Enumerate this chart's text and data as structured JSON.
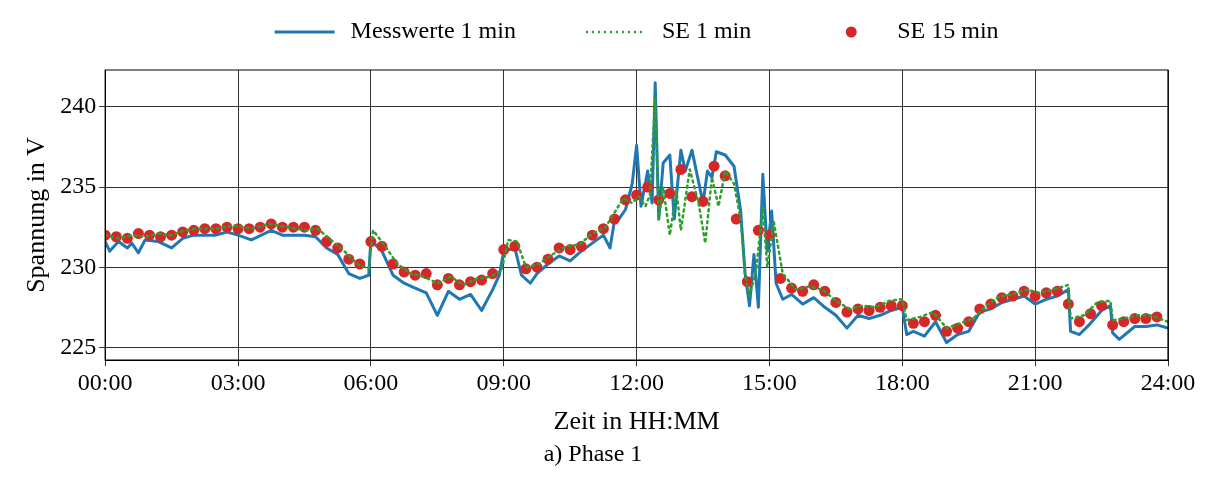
{
  "chart_data": {
    "type": "line",
    "title": "a) Phase 1",
    "xlabel": "Zeit in HH:MM",
    "ylabel": "Spannung in V",
    "xlim": [
      0,
      24
    ],
    "ylim": [
      224.2,
      242.3
    ],
    "xticks": [
      {
        "value": 0,
        "label": "00:00"
      },
      {
        "value": 3,
        "label": "03:00"
      },
      {
        "value": 6,
        "label": "06:00"
      },
      {
        "value": 9,
        "label": "09:00"
      },
      {
        "value": 12,
        "label": "12:00"
      },
      {
        "value": 15,
        "label": "15:00"
      },
      {
        "value": 18,
        "label": "18:00"
      },
      {
        "value": 21,
        "label": "21:00"
      },
      {
        "value": 24,
        "label": "24:00"
      }
    ],
    "yticks": [
      225,
      230,
      235,
      240
    ],
    "grid": true,
    "legend": "top",
    "series": [
      {
        "name": "Messwerte 1 min",
        "type": "line",
        "line_style": "solid",
        "marker": "none",
        "color": "#1f77b4",
        "x": [
          0,
          0.1,
          0.3,
          0.5,
          0.6,
          0.75,
          0.9,
          1.2,
          1.5,
          1.75,
          2.0,
          2.5,
          2.75,
          3.0,
          3.3,
          3.75,
          4.0,
          4.5,
          4.75,
          5.0,
          5.25,
          5.5,
          5.75,
          5.95,
          6.0,
          6.25,
          6.5,
          6.75,
          7.0,
          7.25,
          7.5,
          7.75,
          8.0,
          8.25,
          8.5,
          8.75,
          8.9,
          9.0,
          9.25,
          9.4,
          9.6,
          9.75,
          10.0,
          10.25,
          10.5,
          10.75,
          11.0,
          11.25,
          11.4,
          11.5,
          11.6,
          11.75,
          11.9,
          12.0,
          12.1,
          12.25,
          12.35,
          12.42,
          12.5,
          12.6,
          12.75,
          12.85,
          13.0,
          13.1,
          13.25,
          13.5,
          13.6,
          13.7,
          13.8,
          14.0,
          14.2,
          14.35,
          14.45,
          14.55,
          14.65,
          14.75,
          14.85,
          14.95,
          15.05,
          15.15,
          15.3,
          15.5,
          15.75,
          16.0,
          16.25,
          16.5,
          16.75,
          17.0,
          17.25,
          17.5,
          17.75,
          18.0,
          18.1,
          18.25,
          18.5,
          18.75,
          19.0,
          19.25,
          19.5,
          19.75,
          20.0,
          20.25,
          20.5,
          20.75,
          21.0,
          21.25,
          21.5,
          21.75,
          21.8,
          22.0,
          22.25,
          22.5,
          22.7,
          22.75,
          22.9,
          23.25,
          23.5,
          23.75,
          24.0
        ],
        "values": [
          231.6,
          231.0,
          231.6,
          231.2,
          231.5,
          230.9,
          231.7,
          231.6,
          231.2,
          231.8,
          232.0,
          232.0,
          232.2,
          232.0,
          231.7,
          232.3,
          232.0,
          232.0,
          231.9,
          231.2,
          230.8,
          229.6,
          229.3,
          229.5,
          231.7,
          231.0,
          229.5,
          229.0,
          228.7,
          228.4,
          227.0,
          228.5,
          228.0,
          228.3,
          227.3,
          228.6,
          229.5,
          231.0,
          231.2,
          229.5,
          229.0,
          229.6,
          230.2,
          230.7,
          230.4,
          231.0,
          231.5,
          232.0,
          231.2,
          232.9,
          233.0,
          233.6,
          235.2,
          237.6,
          233.8,
          236.0,
          234.0,
          241.5,
          233.0,
          236.5,
          237.0,
          233.0,
          237.3,
          236.0,
          237.3,
          234.0,
          236.0,
          235.6,
          237.2,
          237.0,
          236.3,
          233.5,
          229.6,
          227.6,
          230.8,
          227.5,
          235.8,
          231.0,
          233.5,
          229.0,
          228.0,
          228.3,
          227.7,
          228.1,
          227.5,
          227.0,
          226.2,
          227.0,
          226.8,
          227.0,
          227.3,
          227.5,
          225.8,
          226.0,
          225.7,
          226.6,
          225.3,
          225.8,
          226.0,
          227.2,
          227.4,
          227.8,
          228.0,
          228.2,
          227.7,
          228.0,
          228.2,
          228.6,
          226.0,
          225.8,
          226.5,
          227.3,
          227.6,
          225.9,
          225.5,
          226.3,
          226.3,
          226.4,
          226.2
        ]
      },
      {
        "name": "SE 1 min",
        "type": "line",
        "line_style": "dotted",
        "marker": "none",
        "color": "#2ca02c",
        "x": [
          0,
          0.3,
          0.6,
          0.9,
          1.2,
          1.5,
          1.8,
          2.1,
          2.5,
          2.9,
          3.3,
          3.7,
          4.1,
          4.5,
          4.8,
          5.1,
          5.4,
          5.7,
          5.95,
          6.05,
          6.3,
          6.6,
          6.9,
          7.2,
          7.5,
          7.8,
          8.1,
          8.4,
          8.7,
          8.95,
          9.1,
          9.3,
          9.5,
          9.8,
          10.1,
          10.4,
          10.7,
          11.0,
          11.3,
          11.5,
          11.7,
          11.9,
          12.05,
          12.2,
          12.3,
          12.42,
          12.5,
          12.6,
          12.75,
          12.9,
          13.0,
          13.2,
          13.4,
          13.55,
          13.7,
          13.85,
          14.0,
          14.2,
          14.35,
          14.45,
          14.55,
          14.7,
          14.85,
          14.95,
          15.1,
          15.3,
          15.6,
          15.9,
          16.2,
          16.5,
          16.8,
          17.1,
          17.4,
          17.7,
          18.0,
          18.1,
          18.4,
          18.7,
          19.0,
          19.3,
          19.6,
          19.9,
          20.2,
          20.5,
          20.8,
          21.1,
          21.4,
          21.75,
          21.8,
          22.1,
          22.4,
          22.7,
          22.75,
          23.0,
          23.3,
          23.6,
          24.0
        ],
        "values": [
          232.0,
          231.8,
          232.0,
          231.9,
          232.1,
          232.0,
          232.3,
          232.4,
          232.4,
          232.6,
          232.4,
          232.7,
          232.5,
          232.3,
          232.4,
          231.7,
          231.0,
          230.2,
          229.9,
          232.3,
          231.4,
          230.2,
          229.6,
          229.4,
          229.0,
          229.4,
          228.9,
          229.3,
          229.4,
          229.8,
          231.7,
          231.6,
          230.0,
          230.2,
          230.8,
          231.3,
          231.4,
          232.1,
          232.5,
          233.4,
          234.3,
          234.0,
          234.4,
          233.8,
          234.5,
          240.5,
          233.0,
          235.0,
          232.0,
          234.8,
          232.3,
          236.1,
          234.0,
          231.5,
          235.6,
          233.8,
          236.0,
          235.2,
          233.0,
          229.5,
          228.2,
          229.8,
          233.8,
          230.0,
          232.8,
          229.6,
          228.6,
          228.8,
          228.6,
          227.9,
          227.4,
          227.6,
          227.5,
          227.9,
          228.0,
          226.7,
          226.9,
          227.2,
          226.2,
          226.5,
          226.8,
          227.6,
          228.2,
          228.3,
          228.6,
          228.4,
          228.6,
          228.9,
          226.8,
          227.0,
          227.8,
          227.9,
          226.7,
          226.8,
          227.0,
          227.0,
          226.6
        ]
      },
      {
        "name": "SE 15 min",
        "type": "scatter",
        "marker": "circle",
        "color": "#d62728",
        "x": [
          0,
          0.25,
          0.5,
          0.75,
          1,
          1.25,
          1.5,
          1.75,
          2,
          2.25,
          2.5,
          2.75,
          3,
          3.25,
          3.5,
          3.75,
          4,
          4.25,
          4.5,
          4.75,
          5,
          5.25,
          5.5,
          5.75,
          6,
          6.25,
          6.5,
          6.75,
          7,
          7.25,
          7.5,
          7.75,
          8,
          8.25,
          8.5,
          8.75,
          9,
          9.25,
          9.5,
          9.75,
          10,
          10.25,
          10.5,
          10.75,
          11,
          11.25,
          11.5,
          11.75,
          12,
          12.25,
          12.5,
          12.75,
          13,
          13.25,
          13.5,
          13.75,
          14,
          14.25,
          14.5,
          14.75,
          15,
          15.25,
          15.5,
          15.75,
          16,
          16.25,
          16.5,
          16.75,
          17,
          17.25,
          17.5,
          17.75,
          18,
          18.25,
          18.5,
          18.75,
          19,
          19.25,
          19.5,
          19.75,
          20,
          20.25,
          20.5,
          20.75,
          21,
          21.25,
          21.5,
          21.75,
          22,
          22.25,
          22.5,
          22.75,
          23,
          23.25,
          23.5,
          23.75
        ],
        "values": [
          232.0,
          231.9,
          231.8,
          232.1,
          232.0,
          231.9,
          232.0,
          232.2,
          232.3,
          232.4,
          232.4,
          232.5,
          232.4,
          232.4,
          232.5,
          232.7,
          232.5,
          232.5,
          232.5,
          232.3,
          231.6,
          231.2,
          230.5,
          230.2,
          231.6,
          231.3,
          230.2,
          229.7,
          229.5,
          229.6,
          228.9,
          229.3,
          228.9,
          229.1,
          229.2,
          229.6,
          231.1,
          231.3,
          229.9,
          230.0,
          230.5,
          231.2,
          231.1,
          231.3,
          232.0,
          232.4,
          233.0,
          234.2,
          234.5,
          235.0,
          234.2,
          234.6,
          236.1,
          234.4,
          234.1,
          236.3,
          235.7,
          233.0,
          229.1,
          232.3,
          232.0,
          229.3,
          228.7,
          228.5,
          228.9,
          228.5,
          227.8,
          227.2,
          227.4,
          227.3,
          227.5,
          227.6,
          227.6,
          226.5,
          226.6,
          227.0,
          226.0,
          226.2,
          226.6,
          227.4,
          227.7,
          228.1,
          228.2,
          228.5,
          228.2,
          228.4,
          228.5,
          227.7,
          226.6,
          227.1,
          227.6,
          226.4,
          226.6,
          226.8,
          226.8,
          226.9
        ]
      }
    ]
  }
}
